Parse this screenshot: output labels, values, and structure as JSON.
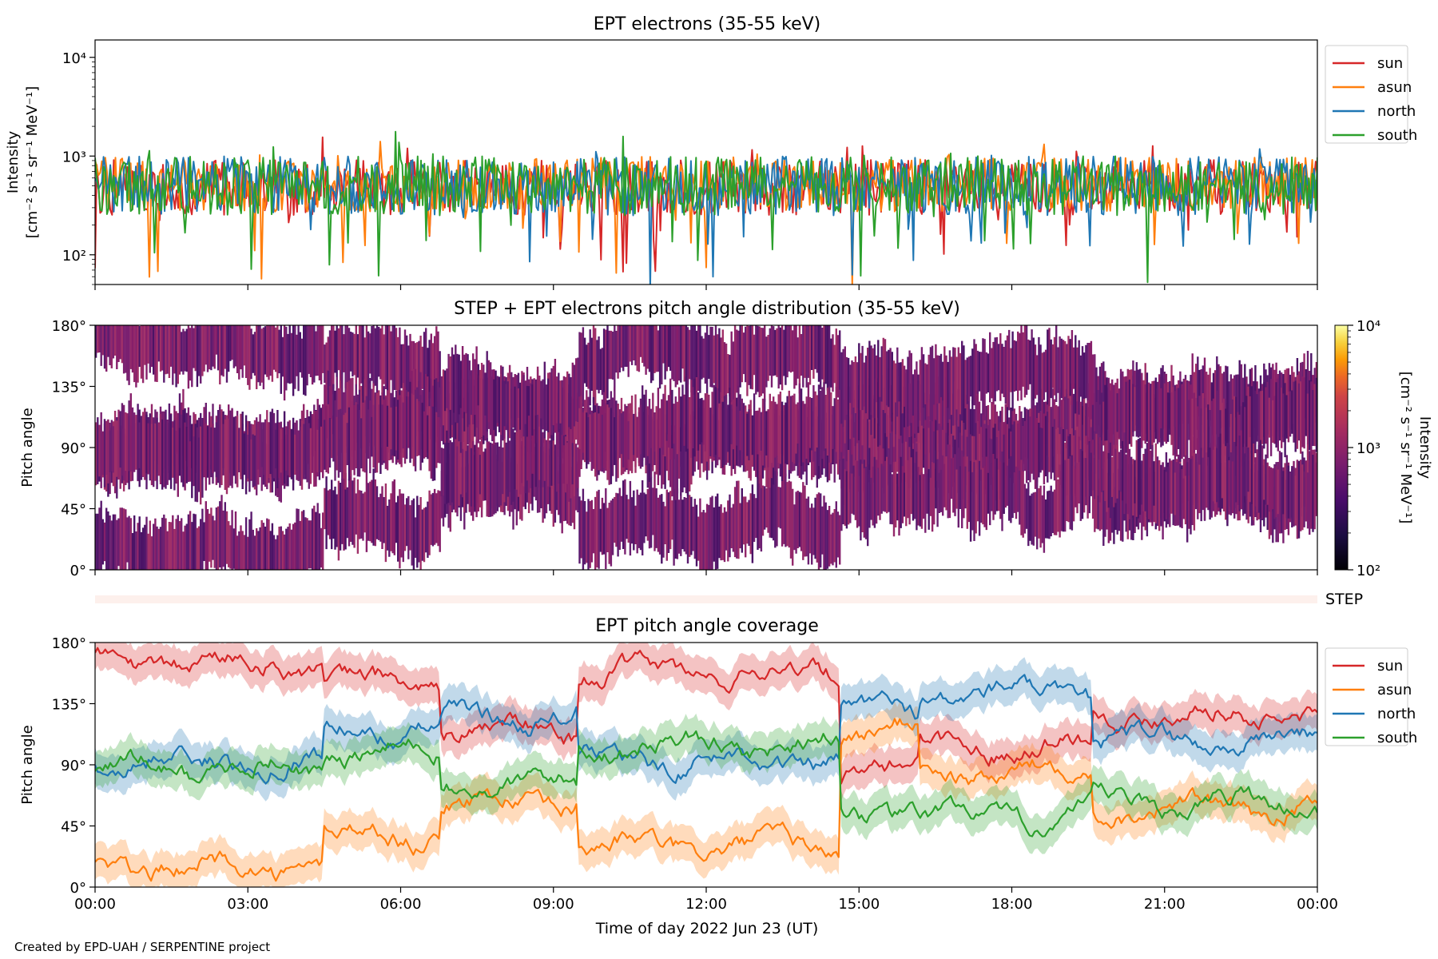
{
  "colors": {
    "sun": "#d62728",
    "asun": "#ff7f0e",
    "north": "#1f77b4",
    "south": "#2ca02c"
  },
  "credit": "Created by EPD-UAH / SERPENTINE project",
  "chart_data": [
    {
      "type": "line",
      "title": "EPT electrons (35-55 keV)",
      "ylabel_line1": "Intensity",
      "ylabel_line2": "[cm⁻² s⁻¹ sr⁻¹ MeV⁻¹]",
      "yscale": "log",
      "ylim": [
        50,
        15000
      ],
      "yticks": [
        {
          "value": 100,
          "label": "10²"
        },
        {
          "value": 1000,
          "label": "10³"
        },
        {
          "value": 10000,
          "label": "10⁴"
        }
      ],
      "legend_position": "outside-right",
      "series": [
        {
          "name": "sun",
          "color": "#d62728",
          "typical": 480,
          "spread": 0.28
        },
        {
          "name": "asun",
          "color": "#ff7f0e",
          "typical": 520,
          "spread": 0.28
        },
        {
          "name": "north",
          "color": "#1f77b4",
          "typical": 500,
          "spread": 0.3
        },
        {
          "name": "south",
          "color": "#2ca02c",
          "typical": 500,
          "spread": 0.3
        }
      ]
    },
    {
      "type": "heatmap",
      "title": "STEP + EPT electrons pitch angle distribution (35-55 keV)",
      "ylabel": "Pitch angle",
      "ylim": [
        0,
        180
      ],
      "yticks": [
        "0°",
        "45°",
        "90°",
        "135°",
        "180°"
      ],
      "colorbar": {
        "label_line1": "Intensity",
        "label_line2": "[cm⁻² s⁻¹ sr⁻¹ MeV⁻¹]",
        "scale": "log",
        "range": [
          100,
          10000
        ],
        "ticks": [
          "10²",
          "10³",
          "10⁴"
        ],
        "colormap": "inferno"
      },
      "step_strip_label": "STEP"
    },
    {
      "type": "line",
      "title": "EPT pitch angle coverage",
      "ylabel": "Pitch angle",
      "ylim": [
        0,
        180
      ],
      "yticks": [
        "0°",
        "45°",
        "90°",
        "135°",
        "180°"
      ],
      "legend_position": "outside-right",
      "xlabel": "Time of day 2022 Jun 23 (UT)",
      "xticks": [
        "00:00",
        "03:00",
        "06:00",
        "09:00",
        "12:00",
        "15:00",
        "18:00",
        "21:00",
        "00:00"
      ],
      "xlim_hours": [
        0,
        24
      ],
      "segments_hours": [
        0,
        4.5,
        6.8,
        9.5,
        14.6,
        16.2,
        19.6,
        24
      ],
      "series": [
        {
          "name": "sun",
          "color": "#d62728",
          "segments": [
            165,
            150,
            115,
            158,
            88,
            105,
            128
          ]
        },
        {
          "name": "asun",
          "color": "#ff7f0e",
          "segments": [
            15,
            38,
            62,
            30,
            115,
            85,
            58
          ]
        },
        {
          "name": "north",
          "color": "#1f77b4",
          "segments": [
            92,
            115,
            125,
            93,
            130,
            142,
            108
          ]
        },
        {
          "name": "south",
          "color": "#2ca02c",
          "segments": [
            88,
            98,
            75,
            105,
            55,
            52,
            62
          ]
        }
      ]
    }
  ]
}
